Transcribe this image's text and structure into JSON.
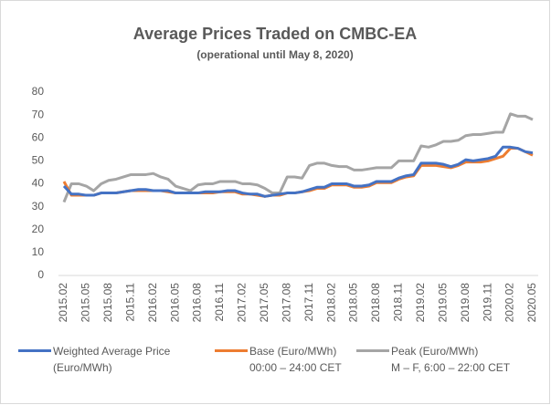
{
  "chart_data": {
    "type": "line",
    "title": "Average Prices Traded on CMBC-EA",
    "subtitle": "(operational until May 8, 2020)",
    "categories": [
      "2015.02",
      null,
      null,
      "2015.05",
      null,
      null,
      "2015.08",
      null,
      null,
      "2015.11",
      null,
      null,
      "2016.02",
      null,
      null,
      "2016.05",
      null,
      null,
      "2016.08",
      null,
      null,
      "2016.11",
      null,
      null,
      "2017.02",
      null,
      null,
      "2017.05",
      null,
      null,
      "2017.08",
      null,
      null,
      "2017.11",
      null,
      null,
      "2018.02",
      null,
      null,
      "2018.05",
      null,
      null,
      "2018.08",
      null,
      null,
      "2018.11",
      null,
      null,
      "2019.02",
      null,
      null,
      "2019.05",
      null,
      null,
      "2019.08",
      null,
      null,
      "2019.11",
      null,
      null,
      "2020.02",
      null,
      null,
      "2020.05"
    ],
    "series": [
      {
        "name": "Weighted Average Price\n(Euro/MWh)",
        "color": "#4472c4",
        "values": [
          39,
          35.5,
          35.5,
          35,
          35,
          36,
          36,
          36,
          36.5,
          37,
          37.5,
          37.5,
          37,
          37,
          37,
          36,
          36,
          36,
          36,
          36.5,
          36.5,
          36.5,
          37,
          37,
          36,
          35.5,
          35.5,
          34.5,
          35,
          35.5,
          36,
          36,
          36.5,
          37.5,
          38.5,
          38.5,
          40,
          40,
          40,
          39,
          39,
          39.5,
          41,
          41,
          41,
          42.5,
          43.5,
          44,
          49,
          49,
          49,
          48.5,
          47.5,
          48.5,
          50.5,
          50,
          50.5,
          51,
          52,
          56,
          56,
          55.5,
          54,
          53.5
        ]
      },
      {
        "name": "Base (Euro/MWh)\n00:00 – 24:00 CET",
        "color": "#ed7d31",
        "values": [
          41,
          35,
          35,
          35,
          35,
          36,
          36,
          36,
          36.5,
          37,
          37,
          37,
          37,
          37,
          36.5,
          36,
          36,
          36,
          36,
          36,
          36,
          36.5,
          36.5,
          36.5,
          35.5,
          35.5,
          35,
          34.5,
          35,
          35,
          36,
          36,
          36.5,
          37,
          38,
          38,
          39.5,
          39.5,
          39.5,
          38.5,
          38.5,
          39,
          40.5,
          40.5,
          40.5,
          42,
          43,
          43.5,
          48,
          48,
          48,
          47.5,
          47,
          48,
          49.5,
          49.5,
          49.5,
          50,
          51,
          52,
          55.5,
          55.5,
          54,
          52.5
        ]
      },
      {
        "name": "Peak (Euro/MWh)\nM – F, 6:00 – 22:00 CET",
        "color": "#a5a5a5",
        "values": [
          32,
          40,
          40,
          39,
          37,
          40,
          41.5,
          42,
          43,
          44,
          44,
          44,
          44.5,
          43,
          42,
          39,
          38,
          37,
          39.5,
          40,
          40,
          41,
          41,
          41,
          40,
          40,
          39.5,
          38,
          36,
          36,
          43,
          43,
          42.5,
          48,
          49,
          49,
          48,
          47.5,
          47.5,
          46,
          46,
          46.5,
          47,
          47,
          47,
          50,
          50,
          50,
          56.5,
          56,
          57,
          58.5,
          58.5,
          59,
          61,
          61.5,
          61.5,
          62,
          62.5,
          62.5,
          70.5,
          69.5,
          69.5,
          68
        ]
      }
    ],
    "ylim": [
      0,
      80
    ],
    "yticks": [
      0,
      10,
      20,
      30,
      40,
      50,
      60,
      70,
      80
    ],
    "legend": "bottom"
  }
}
